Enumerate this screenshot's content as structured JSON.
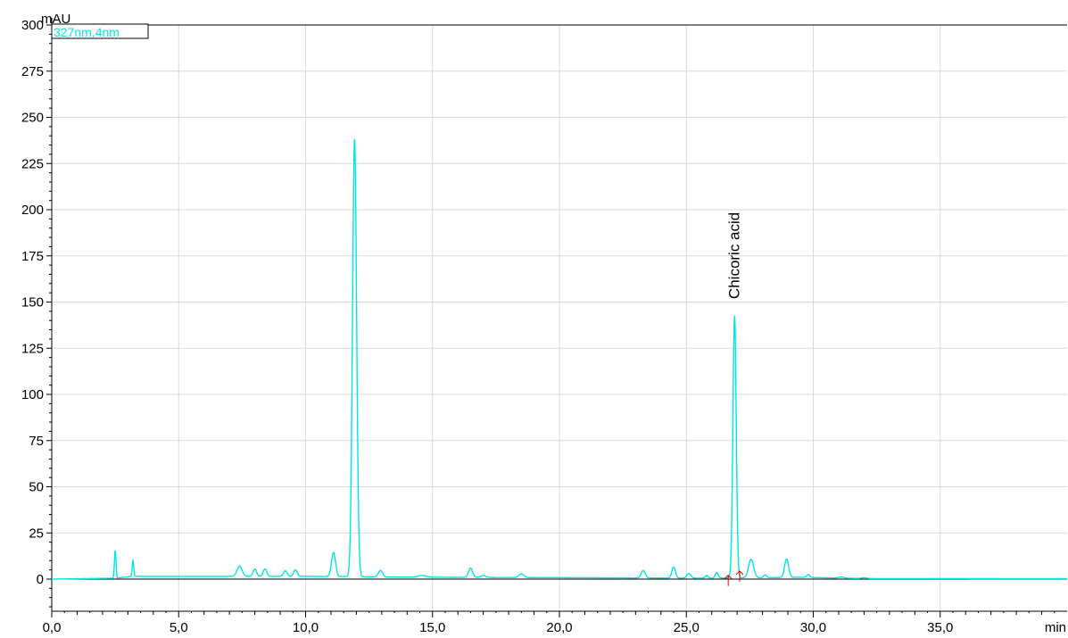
{
  "chart_data": {
    "type": "line",
    "xlabel": "min",
    "ylabel": "mAU",
    "xlim": [
      0,
      40
    ],
    "ylim": [
      -17,
      300
    ],
    "x_ticks": [
      0,
      5,
      10,
      15,
      20,
      25,
      30,
      35
    ],
    "x_tick_labels": [
      "0,0",
      "5,0",
      "10,0",
      "15,0",
      "20,0",
      "25,0",
      "30,0",
      "35,0"
    ],
    "y_ticks": [
      0,
      25,
      50,
      75,
      100,
      125,
      150,
      175,
      200,
      225,
      250,
      275,
      300
    ],
    "y_tick_labels": [
      "0",
      "25",
      "50",
      "75",
      "100",
      "125",
      "150",
      "175",
      "200",
      "225",
      "250",
      "275",
      "300"
    ],
    "grid": true,
    "legend_position": "top-left",
    "colors": {
      "trace": "#00e5e5",
      "grid": "#d9d9d9",
      "marker": "#e00000"
    },
    "series": [
      {
        "name": "327nm,4nm",
        "baseline": [
          [
            0,
            0
          ],
          [
            2.5,
            0.5
          ],
          [
            3.2,
            1.5
          ],
          [
            10,
            1.5
          ],
          [
            15,
            1
          ],
          [
            20,
            0.8
          ],
          [
            26,
            0.5
          ],
          [
            29.5,
            1
          ],
          [
            32,
            0.3
          ],
          [
            40,
            0.2
          ]
        ],
        "peaks": [
          {
            "rt": 2.5,
            "height": 15,
            "width": 0.03
          },
          {
            "rt": 3.2,
            "height": 8.5,
            "width": 0.03
          },
          {
            "rt": 7.4,
            "height": 5.5,
            "width": 0.1
          },
          {
            "rt": 8.0,
            "height": 4,
            "width": 0.07
          },
          {
            "rt": 8.4,
            "height": 4,
            "width": 0.07
          },
          {
            "rt": 9.2,
            "height": 3,
            "width": 0.07
          },
          {
            "rt": 9.6,
            "height": 3.5,
            "width": 0.07
          },
          {
            "rt": 11.1,
            "height": 13,
            "width": 0.08
          },
          {
            "rt": 11.93,
            "height": 237,
            "width": 0.08
          },
          {
            "rt": 12.95,
            "height": 3.5,
            "width": 0.08
          },
          {
            "rt": 14.6,
            "height": 1,
            "width": 0.15
          },
          {
            "rt": 16.5,
            "height": 5,
            "width": 0.08
          },
          {
            "rt": 17.0,
            "height": 1,
            "width": 0.1
          },
          {
            "rt": 18.5,
            "height": 2,
            "width": 0.1
          },
          {
            "rt": 23.3,
            "height": 4,
            "width": 0.08
          },
          {
            "rt": 24.5,
            "height": 6,
            "width": 0.07
          },
          {
            "rt": 25.1,
            "height": 2.5,
            "width": 0.08
          },
          {
            "rt": 25.8,
            "height": 1.5,
            "width": 0.06
          },
          {
            "rt": 26.2,
            "height": 3,
            "width": 0.06
          },
          {
            "rt": 26.9,
            "height": 142,
            "width": 0.065
          },
          {
            "rt": 27.55,
            "height": 10,
            "width": 0.1
          },
          {
            "rt": 28.1,
            "height": 1.5,
            "width": 0.06
          },
          {
            "rt": 28.95,
            "height": 10,
            "width": 0.08
          },
          {
            "rt": 29.8,
            "height": 1.5,
            "width": 0.06
          },
          {
            "rt": 31.1,
            "height": 0.6,
            "width": 0.1
          },
          {
            "rt": 32.0,
            "height": 0.5,
            "width": 0.1
          }
        ]
      }
    ],
    "annotations": [
      {
        "label": "Chicoric acid",
        "x": 26.9,
        "y": 142
      }
    ],
    "integration_marks": [
      {
        "x": 26.65,
        "y": -0.8
      },
      {
        "x": 27.1,
        "y": 1.5
      }
    ]
  }
}
